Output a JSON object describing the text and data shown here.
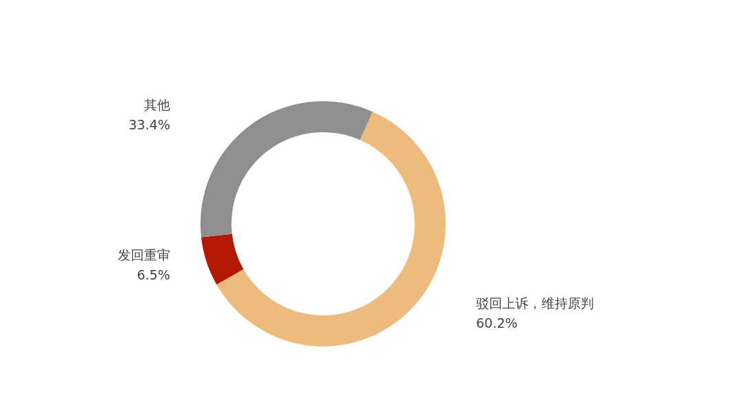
{
  "chart_data": {
    "type": "donut",
    "categories": [
      "驳回上诉，维持原判",
      "发回重审",
      "其他"
    ],
    "values": [
      60.2,
      6.5,
      33.4
    ],
    "colors": [
      "#edbc7d",
      "#b31800",
      "#8f8f8f"
    ],
    "value_labels": [
      "60.2%",
      "6.5%",
      "33.4%"
    ]
  }
}
